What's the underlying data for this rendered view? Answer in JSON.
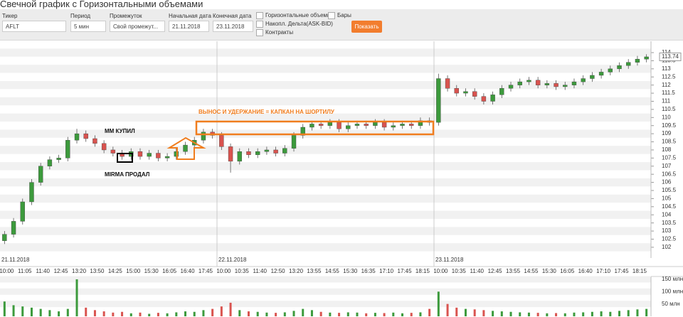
{
  "form": {
    "title": "Свечной график с Горизонтальными объемами",
    "ticker_label": "Тикер",
    "ticker": "AFLT",
    "period_label": "Период",
    "period": "5 мин",
    "range_label": "Промежуток",
    "range": "Свой промежут...",
    "start_label": "Начальная дата",
    "start": "21.11.2018",
    "end_label": "Конечная дата",
    "end": "23.11.2018",
    "checkboxes": [
      "Горизонтальные объемы",
      "Бары",
      "Накопл. Дельта(ASK-BID)",
      "Контракты"
    ],
    "button": "Показать"
  },
  "chart_data": {
    "type": "candlestick",
    "annotations": [
      "ВЫНОС И УДЕРЖАНИЕ = КАПКАН НА ШОРТИЛУ",
      "MM КУПИЛ",
      "MIRMA ПРОДАЛ"
    ],
    "up_color": "#3c9a3c",
    "down_color": "#d9534f",
    "annotation_color": "#f07d1e",
    "times": [
      "10:00",
      null,
      "11:05",
      null,
      "11:40",
      null,
      "12:45",
      null,
      "13:20",
      null,
      "13:50",
      null,
      "14:25",
      null,
      "15:00",
      null,
      "15:30",
      null,
      "16:05",
      null,
      "16:40",
      null,
      "17:45",
      null,
      "10:00",
      null,
      "10:35",
      null,
      "11:40",
      null,
      "12:50",
      null,
      "13:20",
      null,
      "13:55",
      null,
      "14:55",
      null,
      "15:30",
      null,
      "16:35",
      null,
      "17:10",
      null,
      "17:45",
      null,
      "18:15",
      null,
      "10:00",
      null,
      "10:35",
      null,
      "11:40",
      null,
      "12:45",
      null,
      "13:55",
      null,
      "14:55",
      null,
      "15:30",
      null,
      "16:05",
      null,
      "16:40",
      null,
      "17:10",
      null,
      "17:45",
      null,
      "18:15",
      null
    ],
    "dates": [
      "21.11.2018",
      null,
      null,
      null,
      null,
      null,
      null,
      null,
      null,
      null,
      null,
      null,
      null,
      null,
      null,
      null,
      null,
      null,
      null,
      null,
      null,
      null,
      null,
      null,
      "22.11.2018",
      null,
      null,
      null,
      null,
      null,
      null,
      null,
      null,
      null,
      null,
      null,
      null,
      null,
      null,
      null,
      null,
      null,
      null,
      null,
      null,
      null,
      null,
      null,
      "23.11.2018",
      null,
      null,
      null,
      null,
      null,
      null,
      null,
      null,
      null,
      null,
      null,
      null,
      null,
      null,
      null,
      null,
      null,
      null,
      null,
      null,
      null,
      null,
      null
    ],
    "open": [
      102.4,
      102.8,
      103.6,
      104.8,
      106.0,
      107.0,
      107.4,
      107.5,
      108.6,
      109.0,
      108.7,
      108.4,
      108.0,
      107.8,
      107.6,
      107.9,
      107.6,
      107.8,
      107.5,
      107.6,
      107.9,
      108.3,
      108.6,
      109.1,
      108.9,
      108.2,
      107.3,
      107.9,
      107.7,
      107.9,
      108.0,
      107.8,
      108.1,
      108.9,
      109.4,
      109.6,
      109.5,
      109.7,
      109.3,
      109.5,
      109.6,
      109.5,
      109.7,
      109.4,
      109.5,
      109.6,
      109.5,
      109.8,
      109.7,
      112.4,
      111.8,
      111.5,
      111.6,
      111.3,
      111.0,
      111.4,
      111.8,
      112.0,
      112.2,
      112.3,
      112.0,
      112.1,
      111.9,
      112.0,
      112.2,
      112.4,
      112.6,
      112.8,
      113.0,
      113.2,
      113.4,
      113.6
    ],
    "high": [
      103.0,
      103.8,
      105.0,
      106.2,
      107.2,
      107.6,
      107.7,
      108.8,
      109.3,
      109.2,
      108.9,
      108.6,
      108.2,
      108.0,
      108.1,
      108.1,
      108.0,
      108.0,
      107.8,
      108.1,
      108.5,
      108.8,
      109.3,
      109.3,
      109.1,
      108.4,
      108.1,
      108.1,
      108.1,
      108.2,
      108.2,
      108.3,
      109.1,
      109.6,
      109.8,
      109.8,
      109.9,
      109.9,
      109.7,
      109.8,
      109.8,
      109.9,
      109.9,
      109.7,
      109.8,
      109.8,
      110.0,
      110.0,
      112.7,
      112.6,
      112.0,
      111.8,
      111.8,
      111.5,
      111.6,
      112.0,
      112.2,
      112.4,
      112.5,
      112.5,
      112.3,
      112.3,
      112.2,
      112.4,
      112.6,
      112.8,
      113.0,
      113.2,
      113.4,
      113.6,
      113.8,
      113.9
    ],
    "low": [
      102.2,
      102.6,
      103.4,
      104.6,
      105.8,
      106.8,
      107.2,
      107.3,
      108.4,
      108.5,
      108.2,
      107.8,
      107.6,
      107.4,
      107.4,
      107.4,
      107.4,
      107.3,
      107.3,
      107.4,
      107.7,
      108.1,
      108.4,
      108.7,
      108.0,
      106.6,
      107.1,
      107.5,
      107.5,
      107.7,
      107.6,
      107.6,
      107.9,
      108.7,
      109.2,
      109.3,
      109.3,
      109.1,
      109.1,
      109.3,
      109.3,
      109.3,
      109.2,
      109.2,
      109.3,
      109.3,
      109.3,
      109.5,
      109.5,
      111.6,
      111.3,
      111.3,
      111.1,
      110.8,
      110.8,
      111.2,
      111.6,
      111.8,
      112.0,
      111.8,
      111.8,
      111.7,
      111.7,
      111.8,
      112.0,
      112.2,
      112.4,
      112.6,
      112.8,
      113.0,
      113.2,
      113.4
    ],
    "close": [
      102.8,
      103.6,
      104.8,
      106.0,
      107.0,
      107.4,
      107.5,
      108.6,
      109.0,
      108.7,
      108.4,
      108.0,
      107.8,
      107.6,
      107.9,
      107.6,
      107.8,
      107.5,
      107.6,
      107.9,
      108.3,
      108.6,
      109.1,
      108.9,
      108.2,
      107.3,
      107.9,
      107.7,
      107.9,
      108.0,
      107.8,
      108.1,
      108.9,
      109.4,
      109.6,
      109.5,
      109.7,
      109.3,
      109.5,
      109.6,
      109.5,
      109.7,
      109.4,
      109.5,
      109.6,
      109.5,
      109.8,
      109.7,
      112.4,
      111.8,
      111.5,
      111.6,
      111.3,
      111.0,
      111.4,
      111.8,
      112.0,
      112.2,
      112.3,
      112.0,
      112.1,
      111.9,
      112.0,
      112.2,
      112.4,
      112.6,
      112.8,
      113.0,
      113.2,
      113.4,
      113.6,
      113.74
    ],
    "volume": [
      60,
      45,
      40,
      35,
      30,
      25,
      20,
      30,
      150,
      35,
      25,
      20,
      15,
      18,
      12,
      15,
      10,
      14,
      12,
      16,
      20,
      18,
      25,
      30,
      40,
      55,
      25,
      20,
      18,
      15,
      14,
      16,
      22,
      30,
      25,
      18,
      15,
      14,
      16,
      15,
      12,
      14,
      13,
      15,
      12,
      14,
      16,
      30,
      100,
      50,
      35,
      30,
      28,
      25,
      22,
      20,
      18,
      16,
      15,
      14,
      12,
      13,
      12,
      15,
      16,
      18,
      20,
      18,
      22,
      25,
      28,
      30
    ],
    "ylim": [
      101.6,
      114.4
    ],
    "yticks": [
      102,
      102.5,
      103,
      103.5,
      104,
      104.5,
      105,
      105.5,
      106,
      106.5,
      107,
      107.5,
      108,
      108.5,
      109,
      109.5,
      110,
      110.5,
      111,
      111.5,
      112,
      112.5,
      113,
      113.5,
      114
    ],
    "volume_lim": [
      0,
      160
    ],
    "volume_ticks": [
      {
        "value": 50,
        "label": "50 млн"
      },
      {
        "value": 100,
        "label": "100 млн"
      },
      {
        "value": 150,
        "label": "150 млн"
      }
    ]
  }
}
